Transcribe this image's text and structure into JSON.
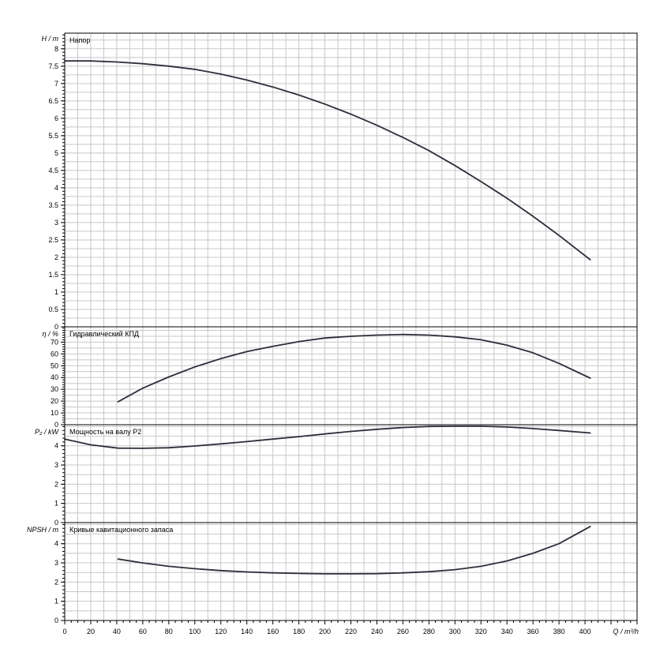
{
  "chart_data": {
    "type": "line",
    "x_axis": {
      "label": "Q / m³/h",
      "range": [
        0,
        440
      ],
      "ticks": [
        0,
        20,
        40,
        60,
        80,
        100,
        120,
        140,
        160,
        180,
        200,
        220,
        240,
        260,
        280,
        300,
        320,
        340,
        360,
        380,
        400
      ]
    },
    "panels": [
      {
        "id": "head",
        "title": "Напор",
        "ylabel": "H / m",
        "ylim": [
          0,
          8.45
        ],
        "ticks": [
          0,
          0.5,
          1,
          1.5,
          2,
          2.5,
          3,
          3.5,
          4,
          4.5,
          5,
          5.5,
          6,
          6.5,
          7,
          7.5,
          8
        ],
        "tick_labels": [
          "0",
          "0.5",
          "1",
          "1.5",
          "2",
          "2.5",
          "3",
          "3.5",
          "4",
          "4.5",
          "5",
          "5.5",
          "6",
          "6.5",
          "7",
          "7.5",
          "8"
        ],
        "series": [
          {
            "x": [
              0,
              20,
              40,
              60,
              80,
              100,
              120,
              140,
              160,
              180,
              200,
              220,
              240,
              260,
              280,
              300,
              320,
              340,
              360,
              380,
              404
            ],
            "y": [
              7.65,
              7.65,
              7.62,
              7.57,
              7.5,
              7.41,
              7.27,
              7.1,
              6.9,
              6.67,
              6.41,
              6.12,
              5.8,
              5.45,
              5.07,
              4.64,
              4.18,
              3.7,
              3.18,
              2.63,
              1.93
            ]
          }
        ]
      },
      {
        "id": "efficiency",
        "title": "Гидравлический КПД",
        "ylabel": "η / %",
        "ylim": [
          0,
          83
        ],
        "ticks": [
          0,
          10,
          20,
          30,
          40,
          50,
          60,
          70
        ],
        "tick_labels": [
          "0",
          "10",
          "20",
          "30",
          "40",
          "50",
          "60",
          "70"
        ],
        "series": [
          {
            "x": [
              41,
              60,
              80,
              100,
              120,
              140,
              160,
              180,
              200,
              220,
              240,
              260,
              280,
              300,
              320,
              340,
              360,
              380,
              404
            ],
            "y": [
              19.5,
              31,
              40.5,
              49,
              56,
              62,
              66.5,
              70.5,
              73.5,
              75,
              76,
              76.5,
              76,
              74.5,
              72,
              67.5,
              61,
              52,
              39.5
            ]
          }
        ]
      },
      {
        "id": "power",
        "title": "Мощность на валу P2",
        "ylabel": "P₂ / kW",
        "ylim": [
          0,
          5.1
        ],
        "ticks": [
          0,
          1,
          2,
          3,
          4
        ],
        "tick_labels": [
          "0",
          "1",
          "2",
          "3",
          "4"
        ],
        "series": [
          {
            "x": [
              0,
              20,
              41,
              60,
              80,
              100,
              120,
              140,
              160,
              180,
              200,
              220,
              240,
              260,
              280,
              300,
              320,
              340,
              360,
              380,
              404
            ],
            "y": [
              4.35,
              4.05,
              3.88,
              3.87,
              3.9,
              3.99,
              4.1,
              4.22,
              4.35,
              4.48,
              4.62,
              4.75,
              4.86,
              4.95,
              5.01,
              5.02,
              5.02,
              4.98,
              4.9,
              4.8,
              4.67
            ]
          }
        ]
      },
      {
        "id": "npsh",
        "title": "Кривые кавитационного запаса",
        "ylabel": "NPSH / m",
        "ylim": [
          0,
          5.1
        ],
        "ticks": [
          0,
          1,
          2,
          3,
          4
        ],
        "tick_labels": [
          "0",
          "1",
          "2",
          "3",
          "4"
        ],
        "series": [
          {
            "x": [
              41,
              60,
              80,
              100,
              120,
              140,
              160,
              180,
              200,
              220,
              240,
              260,
              280,
              300,
              320,
              340,
              360,
              380,
              404
            ],
            "y": [
              3.2,
              3,
              2.82,
              2.7,
              2.6,
              2.53,
              2.48,
              2.45,
              2.43,
              2.43,
              2.44,
              2.48,
              2.54,
              2.65,
              2.82,
              3.1,
              3.5,
              4.0,
              4.9
            ]
          }
        ]
      }
    ],
    "grid": true
  }
}
